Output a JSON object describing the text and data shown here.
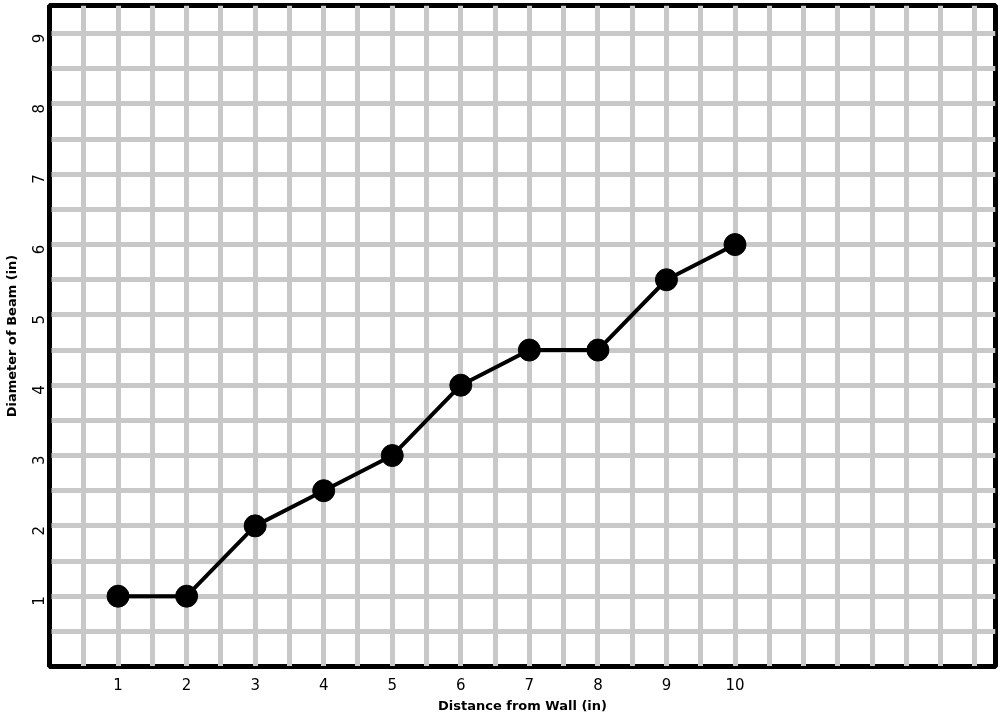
{
  "chart_data": {
    "type": "line",
    "xlabel": "Distance from Wall (in)",
    "ylabel": "Diameter of Beam (in)",
    "x": [
      1,
      2,
      3,
      4,
      5,
      6,
      7,
      8,
      9,
      10
    ],
    "series": [
      {
        "color": "#000000",
        "values": [
          1,
          1,
          2,
          2.5,
          3,
          4,
          4.5,
          4.5,
          5.5,
          6
        ]
      }
    ],
    "marker": "circle",
    "line_style": "solid",
    "grid": true,
    "xlim": [
      0,
      13.8
    ],
    "ylim": [
      0,
      9.4
    ],
    "xticks": [
      {
        "value": 0.5,
        "label": null
      },
      1,
      {
        "value": 1.5,
        "label": null
      },
      2,
      {
        "value": 2.5,
        "label": null
      },
      3,
      {
        "value": 3.5,
        "label": null
      },
      4,
      {
        "value": 4.5,
        "label": null
      },
      5,
      {
        "value": 5.5,
        "label": null
      },
      6,
      {
        "value": 6.5,
        "label": null
      },
      7,
      {
        "value": 7.5,
        "label": null
      },
      8,
      {
        "value": 8.5,
        "label": null
      },
      9,
      {
        "value": 9.5,
        "label": null
      },
      10,
      {
        "value": 10.5,
        "label": null
      },
      {
        "value": 11,
        "label": null
      },
      {
        "value": 11.5,
        "label": null
      },
      {
        "value": 12,
        "label": null
      },
      {
        "value": 12.5,
        "label": null
      },
      {
        "value": 13,
        "label": null
      },
      {
        "value": 13.5,
        "label": null
      }
    ],
    "yticks": [
      {
        "value": 0.5,
        "label": null
      },
      1,
      {
        "value": 1.5,
        "label": null
      },
      2,
      {
        "value": 2.5,
        "label": null
      },
      3,
      {
        "value": 3.5,
        "label": null
      },
      4,
      {
        "value": 4.5,
        "label": null
      },
      5,
      {
        "value": 5.5,
        "label": null
      },
      6,
      {
        "value": 6.5,
        "label": null
      },
      7,
      {
        "value": 7.5,
        "label": null
      },
      8,
      {
        "value": 8.5,
        "label": null
      },
      9
    ]
  }
}
